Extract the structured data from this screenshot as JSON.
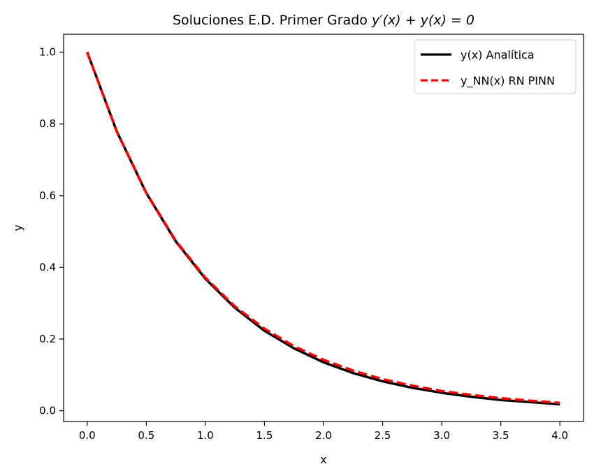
{
  "chart_data": {
    "type": "line",
    "title": {
      "prefix": "Soluciones E.D. Primer Grado ",
      "math": "y′(x) + y(x) = 0"
    },
    "xlabel": "x",
    "ylabel": "y",
    "xlim": [
      -0.2,
      4.2
    ],
    "ylim": [
      -0.03,
      1.05
    ],
    "xticks": [
      0.0,
      0.5,
      1.0,
      1.5,
      2.0,
      2.5,
      3.0,
      3.5,
      4.0
    ],
    "xtick_labels": [
      "0.0",
      "0.5",
      "1.0",
      "1.5",
      "2.0",
      "2.5",
      "3.0",
      "3.5",
      "4.0"
    ],
    "yticks": [
      0.0,
      0.2,
      0.4,
      0.6,
      0.8,
      1.0
    ],
    "ytick_labels": [
      "0.0",
      "0.2",
      "0.4",
      "0.6",
      "0.8",
      "1.0"
    ],
    "grid": false,
    "legend_position": "top-right",
    "series": [
      {
        "name": "y(x) Analítica",
        "color": "#000000",
        "style": "solid",
        "x": [
          0.0,
          0.25,
          0.5,
          0.75,
          1.0,
          1.25,
          1.5,
          1.75,
          2.0,
          2.25,
          2.5,
          2.75,
          3.0,
          3.25,
          3.5,
          3.75,
          4.0
        ],
        "y": [
          1.0,
          0.779,
          0.607,
          0.472,
          0.368,
          0.287,
          0.223,
          0.174,
          0.135,
          0.105,
          0.082,
          0.064,
          0.05,
          0.039,
          0.03,
          0.024,
          0.018
        ]
      },
      {
        "name": "y_NN(x) RN PINN",
        "color": "#ff0000",
        "style": "dashed",
        "x": [
          0.0,
          0.25,
          0.5,
          0.75,
          1.0,
          1.25,
          1.5,
          1.75,
          2.0,
          2.25,
          2.5,
          2.75,
          3.0,
          3.25,
          3.5,
          3.75,
          4.0
        ],
        "y": [
          1.0,
          0.78,
          0.608,
          0.474,
          0.371,
          0.291,
          0.229,
          0.18,
          0.142,
          0.112,
          0.088,
          0.07,
          0.055,
          0.044,
          0.035,
          0.028,
          0.022
        ]
      }
    ]
  }
}
